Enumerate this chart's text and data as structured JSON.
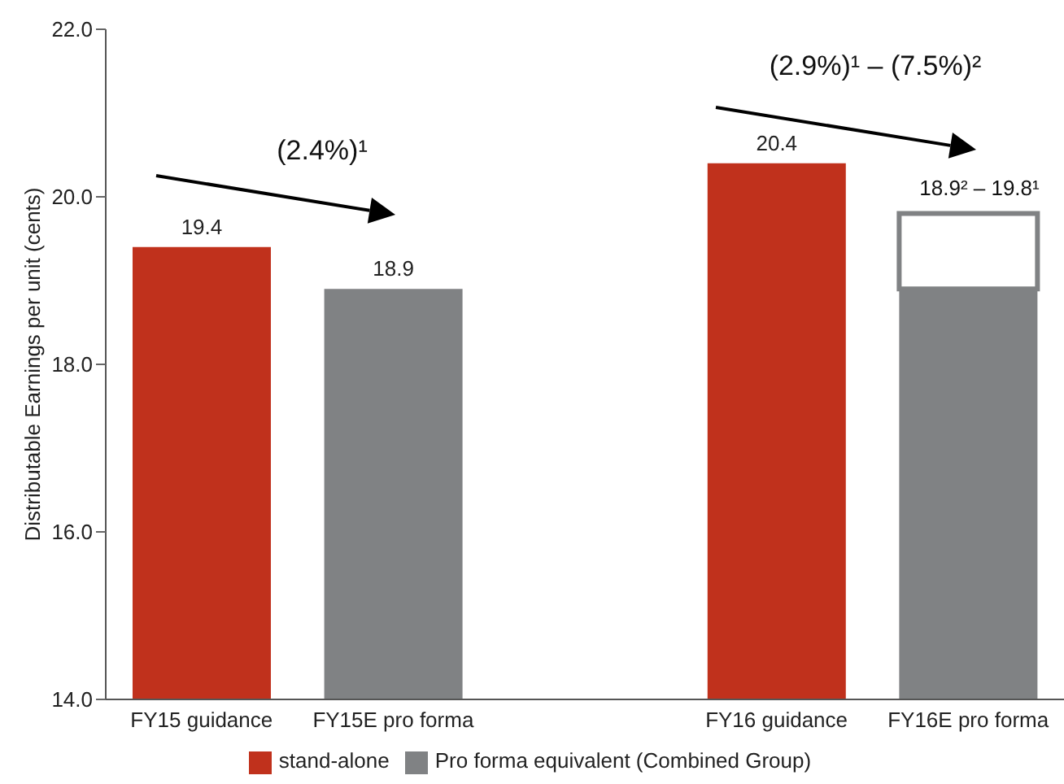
{
  "chart_data": {
    "type": "bar",
    "ylabel": "Distributable Earnings per unit (cents)",
    "categories": [
      "FY15 guidance",
      "FY15E pro forma",
      null,
      "FY16 guidance",
      "FY16E pro forma"
    ],
    "series": [
      {
        "name": "stand-alone",
        "color": "#c0311c",
        "values": [
          19.4,
          null,
          null,
          20.4,
          null
        ],
        "value_labels": [
          "19.4",
          null,
          null,
          "20.4",
          null
        ]
      },
      {
        "name": "Pro forma equivalent (Combined Group)",
        "color": "#808284",
        "values": [
          null,
          18.9,
          null,
          null,
          18.9
        ],
        "value_labels": [
          null,
          "18.9",
          null,
          null,
          null
        ]
      },
      {
        "color": "#ffffff",
        "values": [
          null,
          null,
          null,
          null,
          0.9
        ],
        "base": [
          null,
          null,
          null,
          null,
          18.9
        ]
      }
    ],
    "ylim": [
      14,
      22
    ],
    "yticks": [
      {
        "value": 14,
        "label": "14.0"
      },
      {
        "value": 16,
        "label": "16.0"
      },
      {
        "value": 18,
        "label": "18.0"
      },
      {
        "value": 20,
        "label": "20.0"
      },
      {
        "value": 22,
        "label": "22.0"
      }
    ],
    "grid": false,
    "legend": "bottom",
    "annotations": [
      "(2.4%)¹",
      "(2.9%)¹ – (7.5%)²",
      "18.9² – 19.8¹"
    ]
  }
}
